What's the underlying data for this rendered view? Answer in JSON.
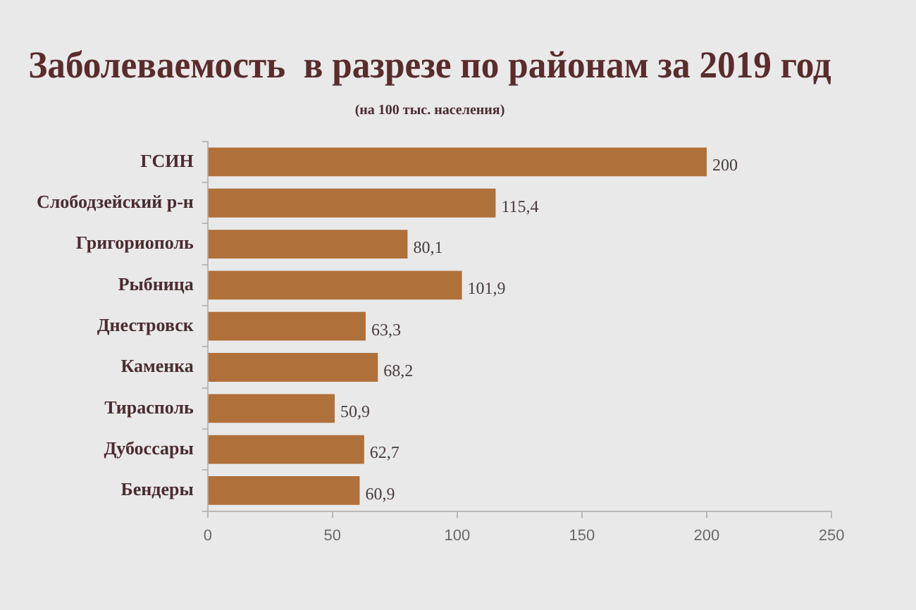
{
  "chart_data": {
    "type": "bar",
    "orientation": "horizontal",
    "title": "Заболеваемость  в разрезе по районам за 2019 год",
    "subtitle": "(на 100 тыс. населения)",
    "categories": [
      "ГСИН",
      "Слободзейский р-н",
      "Григориополь",
      "Рыбница",
      "Днестровск",
      "Каменка",
      "Тирасполь",
      "Дубоссары",
      "Бендеры"
    ],
    "values": [
      200,
      115.4,
      80.1,
      101.9,
      63.3,
      68.2,
      50.9,
      62.7,
      60.9
    ],
    "value_labels": [
      "200",
      "115,4",
      "80,1",
      "101,9",
      "63,3",
      "68,2",
      "50,9",
      "62,7",
      "60,9"
    ],
    "color": "#b0703a",
    "xlim": [
      0,
      250
    ],
    "xticks": [
      0,
      50,
      100,
      150,
      200,
      250
    ],
    "grid": false,
    "legend": false
  }
}
